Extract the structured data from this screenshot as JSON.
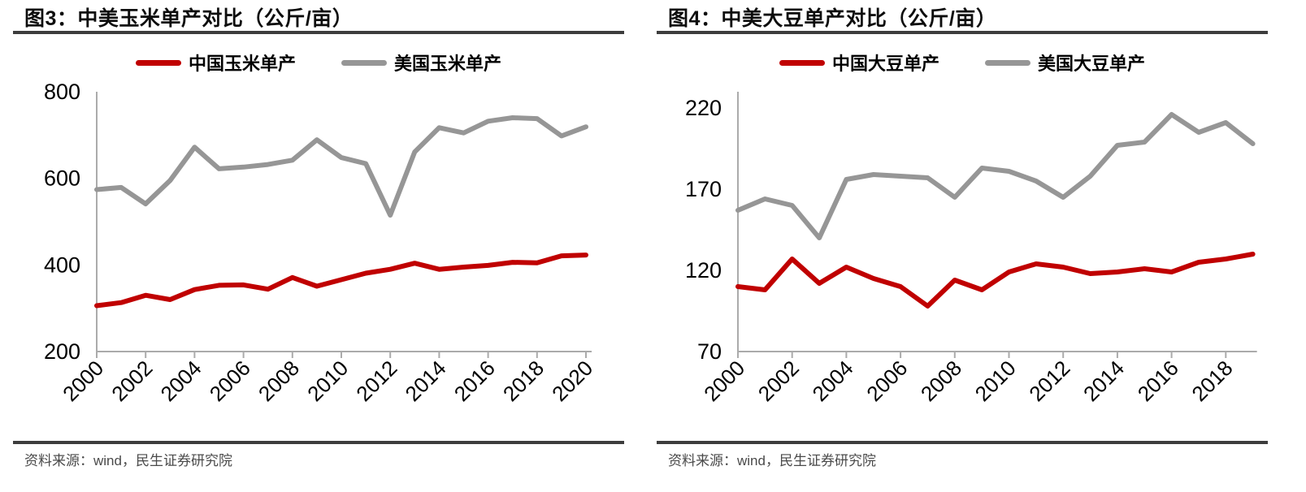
{
  "styles": {
    "china_red": "#c00000",
    "us_gray": "#969696",
    "axis_color": "#ababab",
    "rule_color": "#3d3d3d",
    "title_color": "#0d0d0d",
    "source_color": "#4a4a4a"
  },
  "chart_data": [
    {
      "type": "line",
      "title": "图3：中美玉米单产对比（公斤/亩）",
      "source": "资料来源：wind，民生证券研究院",
      "ylabel": "",
      "xlabel": "",
      "grid": false,
      "legend_position": "top",
      "ylim": [
        200,
        800
      ],
      "yticks": [
        200,
        400,
        600,
        800
      ],
      "xtick_every": 2,
      "x": [
        2000,
        2001,
        2002,
        2003,
        2004,
        2005,
        2006,
        2007,
        2008,
        2009,
        2010,
        2011,
        2012,
        2013,
        2014,
        2015,
        2016,
        2017,
        2018,
        2019,
        2020
      ],
      "series": [
        {
          "name": "中国玉米单产",
          "color": "#c00000",
          "values": [
            306,
            313,
            330,
            320,
            343,
            353,
            354,
            344,
            371,
            351,
            366,
            381,
            390,
            404,
            390,
            395,
            399,
            406,
            405,
            421,
            423
          ]
        },
        {
          "name": "美国玉米单产",
          "color": "#969696",
          "values": [
            574,
            579,
            541,
            595,
            672,
            622,
            626,
            632,
            642,
            689,
            648,
            634,
            515,
            661,
            717,
            705,
            732,
            740,
            738,
            698,
            719
          ]
        }
      ]
    },
    {
      "type": "line",
      "title": "图4：中美大豆单产对比（公斤/亩）",
      "source": "资料来源：wind，民生证券研究院",
      "ylabel": "",
      "xlabel": "",
      "grid": false,
      "legend_position": "top",
      "ylim": [
        70,
        230
      ],
      "yticks": [
        70,
        120,
        170,
        220
      ],
      "xtick_every": 2,
      "x": [
        2000,
        2001,
        2002,
        2003,
        2004,
        2005,
        2006,
        2007,
        2008,
        2009,
        2010,
        2011,
        2012,
        2013,
        2014,
        2015,
        2016,
        2017,
        2018,
        2019
      ],
      "series": [
        {
          "name": "中国大豆单产",
          "color": "#c00000",
          "values": [
            110,
            108,
            127,
            112,
            122,
            115,
            110,
            98,
            114,
            108,
            119,
            124,
            122,
            118,
            119,
            121,
            119,
            125,
            127,
            130
          ]
        },
        {
          "name": "美国大豆单产",
          "color": "#969696",
          "values": [
            157,
            164,
            160,
            140,
            176,
            179,
            178,
            177,
            165,
            183,
            181,
            175,
            165,
            178,
            197,
            199,
            216,
            205,
            211,
            198
          ]
        }
      ]
    }
  ]
}
